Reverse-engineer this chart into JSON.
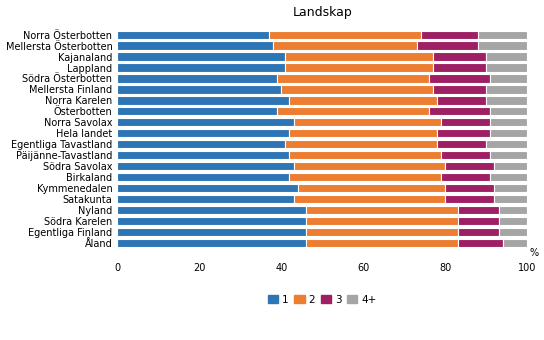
{
  "title": "Landskap",
  "categories": [
    "Norra Österbotten",
    "Mellersta Österbotten",
    "Kajanaland",
    "Lappland",
    "Södra Österbotten",
    "Mellersta Finland",
    "Norra Karelen",
    "Österbotten",
    "Norra Savolax",
    "Hela landet",
    "Egentliga Tavastland",
    "Päijänne-Tavastland",
    "Södra Savolax",
    "Birkaland",
    "Kymmenedalen",
    "Satakunta",
    "Nyland",
    "Södra Karelen",
    "Egentliga Finland",
    "Åland"
  ],
  "data": {
    "1": [
      37,
      38,
      41,
      41,
      39,
      40,
      42,
      39,
      43,
      42,
      41,
      42,
      43,
      42,
      44,
      43,
      46,
      46,
      46,
      46
    ],
    "2": [
      37,
      35,
      36,
      36,
      37,
      37,
      36,
      37,
      36,
      36,
      37,
      37,
      37,
      37,
      36,
      37,
      37,
      37,
      37,
      37
    ],
    "3": [
      14,
      15,
      13,
      13,
      15,
      13,
      12,
      15,
      12,
      13,
      12,
      12,
      12,
      12,
      12,
      12,
      10,
      10,
      10,
      11
    ],
    "4+": [
      12,
      12,
      10,
      10,
      9,
      10,
      10,
      9,
      9,
      9,
      10,
      9,
      8,
      9,
      8,
      8,
      7,
      7,
      7,
      6
    ]
  },
  "colors": {
    "1": "#2E75B6",
    "2": "#ED7D31",
    "3": "#9E1F63",
    "4+": "#A5A5A5"
  },
  "ylabel": "%",
  "xlim": [
    0,
    100
  ],
  "legend_labels": [
    "1",
    "2",
    "3",
    "4+"
  ],
  "title_fontsize": 9,
  "tick_fontsize": 7,
  "legend_fontsize": 7.5
}
